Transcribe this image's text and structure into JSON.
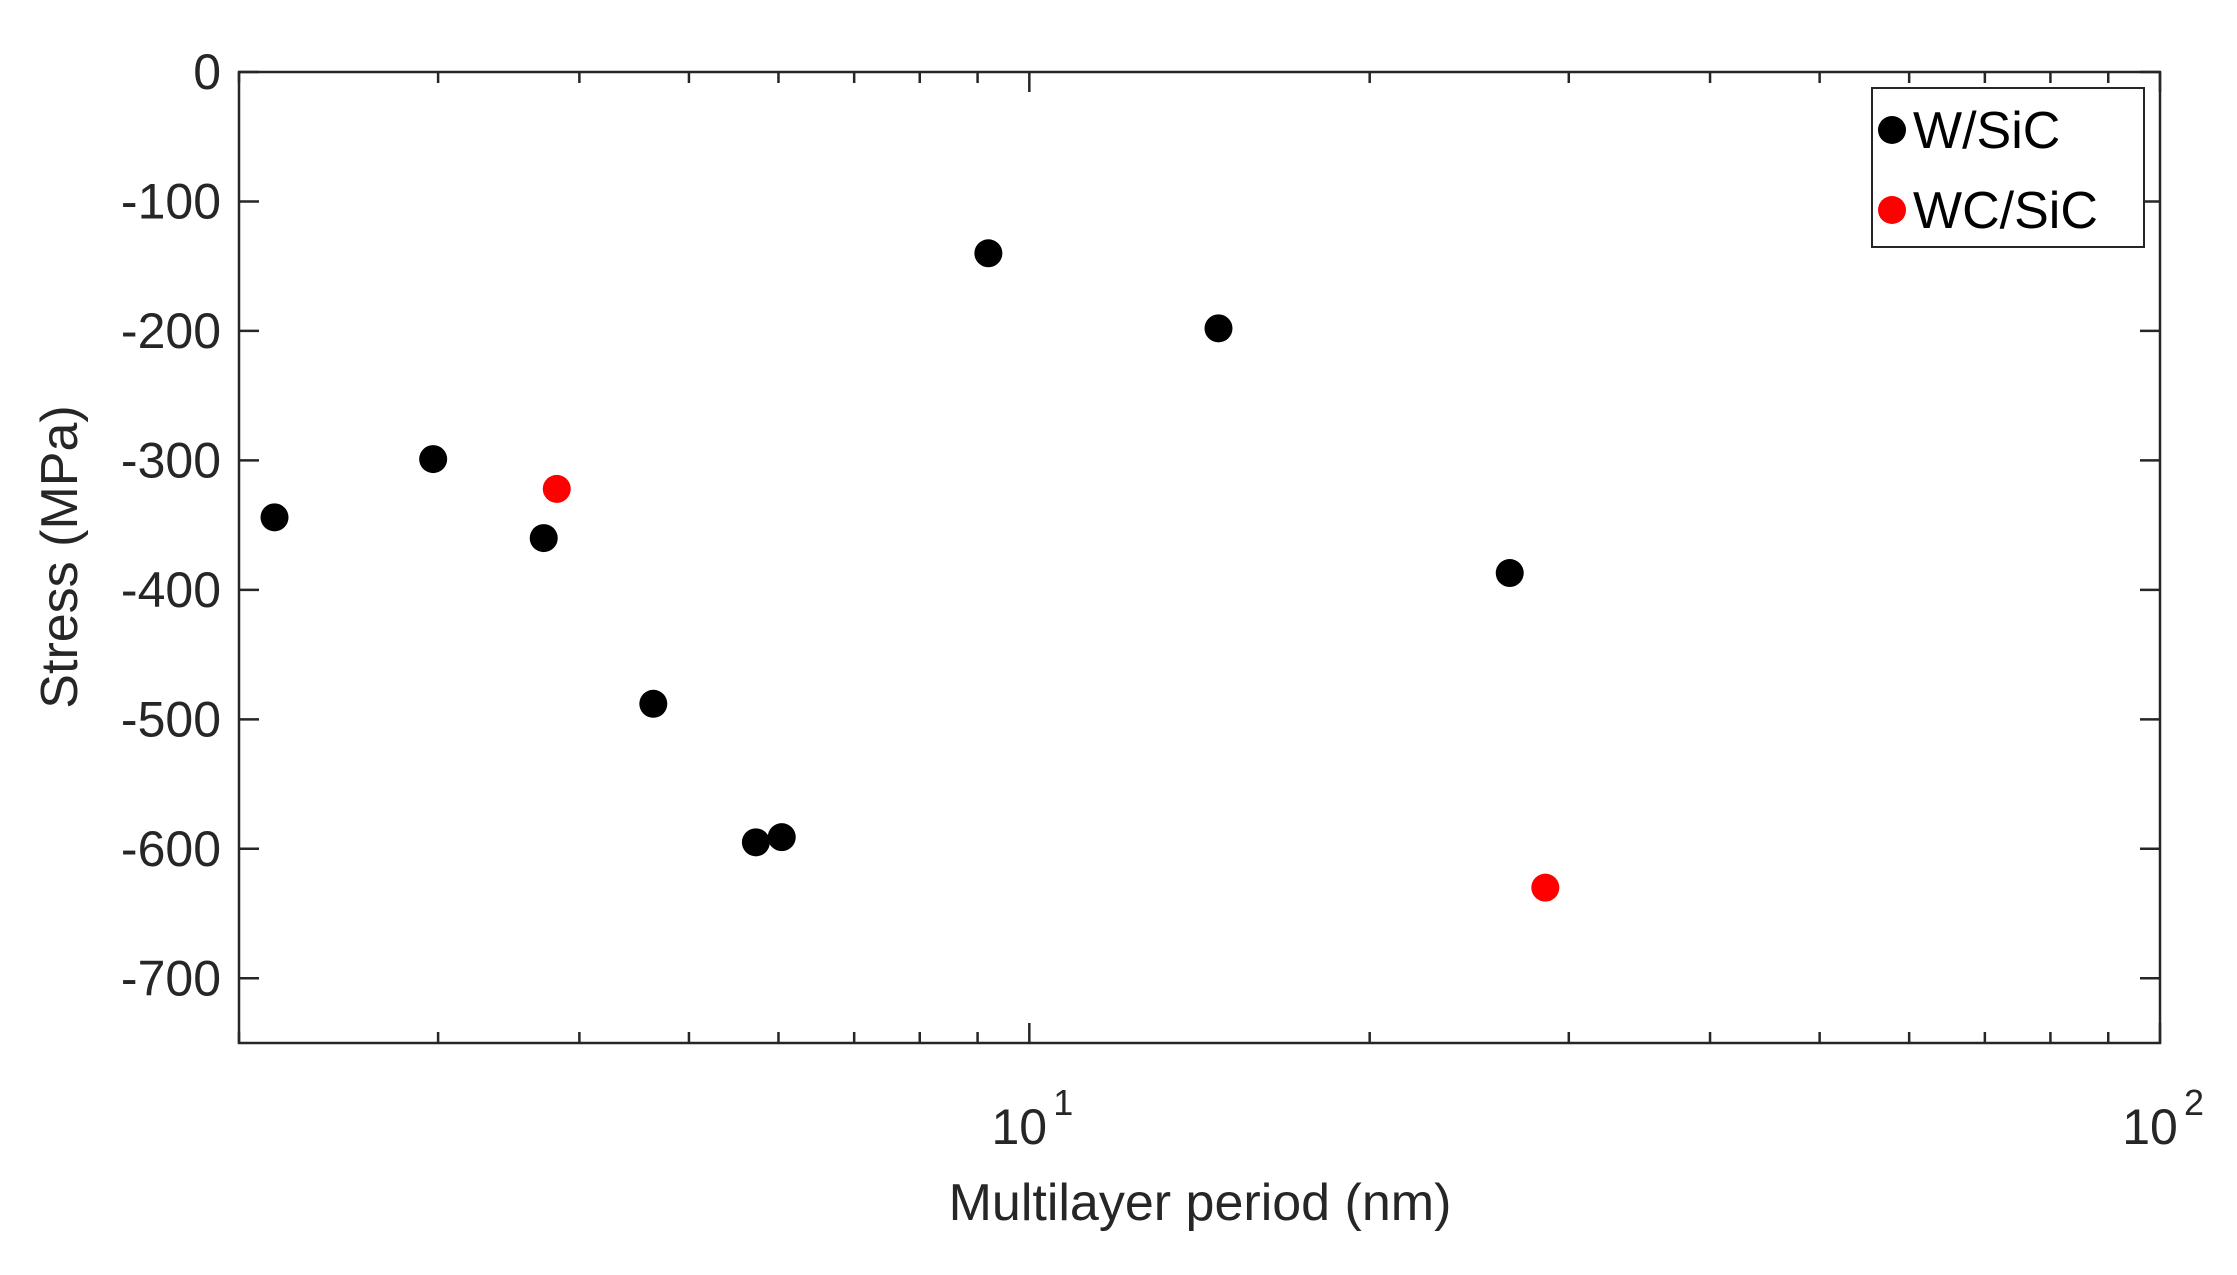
{
  "chart_data": {
    "type": "scatter",
    "xlabel": "Multilayer period (nm)",
    "ylabel": "Stress (MPa)",
    "x_scale": "log",
    "xlim": [
      2.0,
      100
    ],
    "ylim": [
      -750,
      0
    ],
    "x_ticks": [
      {
        "value": 10,
        "base": "10",
        "exp": "1"
      },
      {
        "value": 100,
        "base": "10",
        "exp": "2"
      }
    ],
    "y_ticks": [
      {
        "value": 0,
        "label": "0"
      },
      {
        "value": -100,
        "label": "-100"
      },
      {
        "value": -200,
        "label": "-200"
      },
      {
        "value": -300,
        "label": "-300"
      },
      {
        "value": -400,
        "label": "-400"
      },
      {
        "value": -500,
        "label": "-500"
      },
      {
        "value": -600,
        "label": "-600"
      },
      {
        "value": -700,
        "label": "-700"
      }
    ],
    "grid": false,
    "legend_position": "top-right",
    "series": [
      {
        "name": "W/SiC",
        "color": "#000000",
        "points": [
          {
            "x": 2.15,
            "y": -344
          },
          {
            "x": 2.97,
            "y": -299
          },
          {
            "x": 3.72,
            "y": -360
          },
          {
            "x": 4.65,
            "y": -488
          },
          {
            "x": 5.73,
            "y": -595
          },
          {
            "x": 6.04,
            "y": -591
          },
          {
            "x": 9.2,
            "y": -140
          },
          {
            "x": 14.7,
            "y": -198
          },
          {
            "x": 26.6,
            "y": -387
          }
        ]
      },
      {
        "name": "WC/SiC",
        "color": "#ff0000",
        "points": [
          {
            "x": 3.82,
            "y": -322
          },
          {
            "x": 28.6,
            "y": -630
          }
        ]
      }
    ]
  }
}
